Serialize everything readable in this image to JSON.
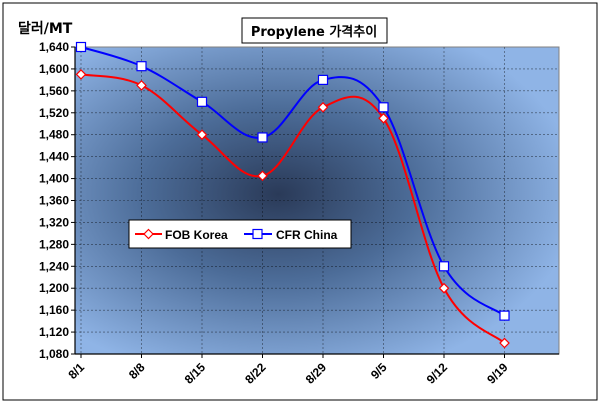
{
  "chart_data": {
    "type": "line",
    "title": "Propylene 가격추이",
    "ylabel": "달러/MT",
    "xlabel": "",
    "categories": [
      "8/1",
      "8/8",
      "8/15",
      "8/22",
      "8/29",
      "9/5",
      "9/12",
      "9/19"
    ],
    "y_ticks": [
      "1,080",
      "1,120",
      "1,160",
      "1,200",
      "1,240",
      "1,280",
      "1,320",
      "1,360",
      "1,400",
      "1,440",
      "1,480",
      "1,520",
      "1,560",
      "1,600",
      "1,640"
    ],
    "ylim": [
      1080,
      1640
    ],
    "grid": true,
    "legend_position": "left-center",
    "series": [
      {
        "name": "FOB Korea",
        "color": "#ff0000",
        "marker": "diamond",
        "values": [
          1590,
          1570,
          1480,
          1405,
          1530,
          1510,
          1200,
          1100
        ]
      },
      {
        "name": "CFR China",
        "color": "#0000ff",
        "marker": "square",
        "values": [
          1640,
          1605,
          1540,
          1475,
          1580,
          1530,
          1240,
          1150
        ]
      }
    ]
  }
}
